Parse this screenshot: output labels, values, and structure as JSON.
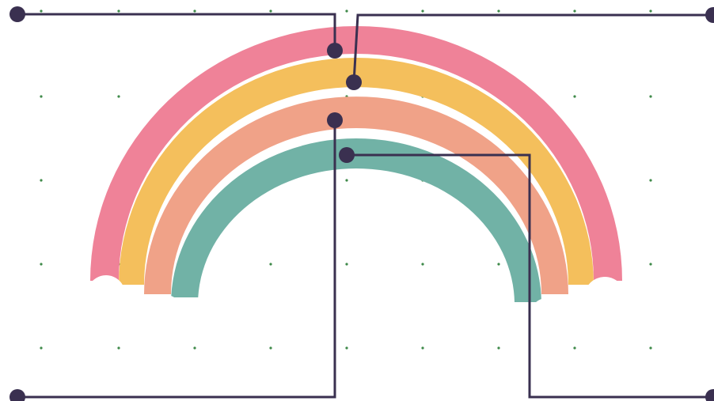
{
  "colors": {
    "background": "#ffffff",
    "band_outer": "#ef8298",
    "band_second": "#f4bf5c",
    "band_third": "#f0a288",
    "band_inner": "#71b2a6",
    "cloud": "#ffffff",
    "leader_line": "#3a3050",
    "leader_dot": "#3a3050",
    "grid_dot": "#3f8a4a"
  },
  "diagram": {
    "subject": "rainbow",
    "bands": [
      {
        "id": "outer",
        "color_key": "band_outer"
      },
      {
        "id": "second",
        "color_key": "band_second"
      },
      {
        "id": "third",
        "color_key": "band_third"
      },
      {
        "id": "inner",
        "color_key": "band_inner"
      }
    ],
    "callouts": [
      {
        "id": "outer",
        "target_band": "outer",
        "side": "left",
        "end": "top"
      },
      {
        "id": "second",
        "target_band": "second",
        "side": "right",
        "end": "top"
      },
      {
        "id": "third",
        "target_band": "third",
        "side": "left",
        "end": "bottom"
      },
      {
        "id": "inner",
        "target_band": "inner",
        "side": "right",
        "end": "bottom"
      }
    ],
    "clouds": [
      "left",
      "right"
    ],
    "grid": true
  }
}
